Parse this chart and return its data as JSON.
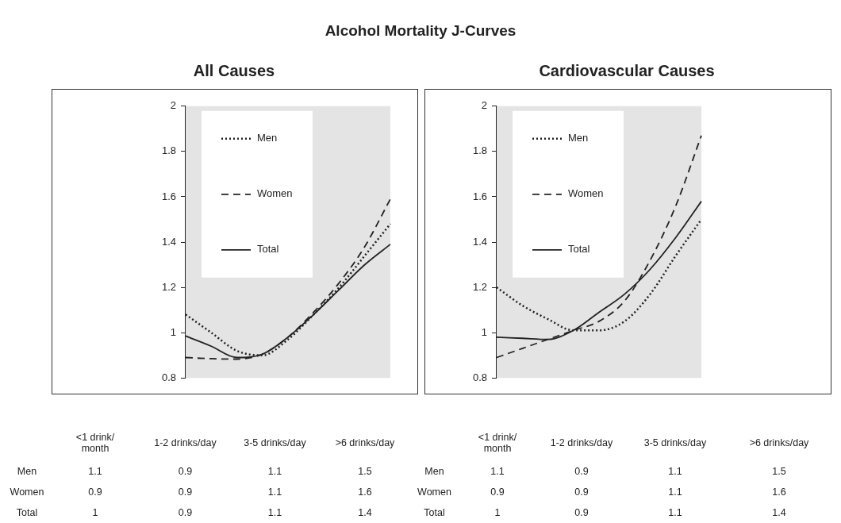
{
  "chart_data": [
    {
      "type": "other",
      "title": "Alcohol Mortality J-Curves"
    },
    {
      "type": "line",
      "title": "All Causes",
      "categories": [
        null,
        null,
        null,
        null,
        null,
        null,
        null,
        null,
        null
      ],
      "ylim": [
        0.8,
        2
      ],
      "yticks": [
        0.8,
        1,
        1.2,
        1.4,
        1.6,
        1.8,
        2
      ],
      "tick_labels": "y",
      "grid": false,
      "legend": "top left",
      "marker": "none",
      "series": [
        {
          "name": "Men",
          "color": "#222222",
          "line_style": "dotted",
          "values": [
            1.08,
            1.0,
            0.92,
            0.9,
            0.97,
            1.08,
            1.2,
            1.34,
            1.48
          ]
        },
        {
          "name": "Women",
          "color": "#222222",
          "line_style": "dashed",
          "values": [
            0.89,
            0.885,
            0.883,
            0.905,
            0.98,
            1.09,
            1.22,
            1.38,
            1.59
          ]
        },
        {
          "name": "Total",
          "color": "#222222",
          "line_style": "solid",
          "values": [
            0.985,
            0.94,
            0.89,
            0.905,
            0.98,
            1.08,
            1.19,
            1.3,
            1.39
          ]
        }
      ]
    },
    {
      "type": "line",
      "title": "Cardiovascular Causes",
      "categories": [
        null,
        null,
        null,
        null,
        null,
        null,
        null,
        null,
        null
      ],
      "ylim": [
        0.8,
        2
      ],
      "yticks": [
        0.8,
        1,
        1.2,
        1.4,
        1.6,
        1.8,
        2
      ],
      "tick_labels": "y",
      "grid": false,
      "legend": "top left",
      "marker": "none",
      "series": [
        {
          "name": "Men",
          "color": "#222222",
          "line_style": "dotted",
          "values": [
            1.2,
            1.12,
            1.06,
            1.01,
            1.01,
            1.05,
            1.17,
            1.34,
            1.5
          ]
        },
        {
          "name": "Women",
          "color": "#222222",
          "line_style": "dashed",
          "values": [
            0.89,
            0.93,
            0.97,
            1.01,
            1.05,
            1.14,
            1.32,
            1.56,
            1.87
          ]
        },
        {
          "name": "Total",
          "color": "#222222",
          "line_style": "solid",
          "values": [
            0.98,
            0.975,
            0.97,
            1.01,
            1.09,
            1.17,
            1.28,
            1.42,
            1.58
          ]
        }
      ]
    },
    {
      "type": "other",
      "categories": [
        "<1 drink/\nmonth",
        "1-2 drinks/day",
        "3-5 drinks/day",
        ">6 drinks/day"
      ],
      "data_labels": true,
      "series": [
        {
          "name": "Men",
          "values": [
            1.1,
            0.9,
            1.1,
            1.5
          ]
        },
        {
          "name": "Women",
          "values": [
            0.9,
            0.9,
            1.1,
            1.6
          ]
        },
        {
          "name": "Total",
          "values": [
            1,
            0.9,
            1.1,
            1.4
          ]
        }
      ]
    },
    {
      "type": "other",
      "categories": [
        "<1 drink/\nmonth",
        "1-2 drinks/day",
        "3-5 drinks/day",
        ">6 drinks/day"
      ],
      "data_labels": true,
      "series": [
        {
          "name": "Men",
          "values": [
            1.1,
            0.9,
            1.1,
            1.5
          ]
        },
        {
          "name": "Women",
          "values": [
            0.9,
            0.9,
            1.1,
            1.6
          ]
        },
        {
          "name": "Total",
          "values": [
            1,
            0.9,
            1.1,
            1.4
          ]
        }
      ]
    }
  ]
}
